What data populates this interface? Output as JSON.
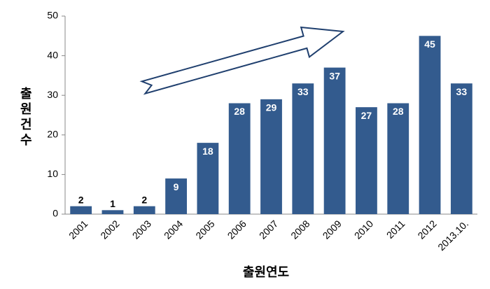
{
  "chart_data": {
    "type": "bar",
    "categories": [
      "2001",
      "2002",
      "2003",
      "2004",
      "2005",
      "2006",
      "2007",
      "2008",
      "2009",
      "2010",
      "2011",
      "2012",
      "2013.10."
    ],
    "values": [
      2,
      1,
      2,
      9,
      18,
      28,
      29,
      33,
      37,
      27,
      28,
      45,
      33
    ],
    "color": "#335b8e",
    "ylim": [
      0,
      50
    ],
    "yticks": [
      0,
      10,
      20,
      30,
      40,
      50
    ],
    "x_label": "출원연도",
    "y_label": "출원건수",
    "grid": false
  }
}
